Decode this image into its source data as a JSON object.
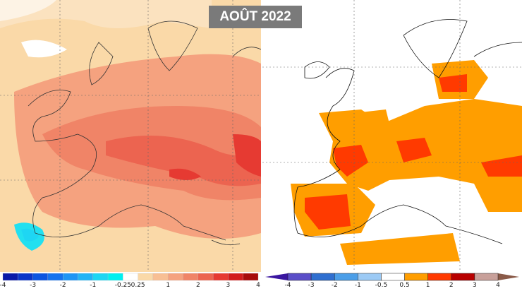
{
  "title": "AOÛT 2022",
  "left_legend": {
    "ticks": [
      "-4",
      "-3",
      "-2",
      "-1",
      "-0.25",
      "0.25",
      "1",
      "2",
      "3",
      "4"
    ],
    "colors": [
      "#0a1aa8",
      "#0a35c8",
      "#0d55e0",
      "#1673ee",
      "#1f95f4",
      "#22b4f5",
      "#1ed6f3",
      "#00f0f0",
      "#ffffff",
      "#fad9a8",
      "#f8bf94",
      "#f5a27f",
      "#f08467",
      "#ec6450",
      "#e63a32",
      "#d21c1c",
      "#a80c0c"
    ]
  },
  "right_legend": {
    "ticks": [
      "-4",
      "-3",
      "-2",
      "-1",
      "-0.5",
      "0.5",
      "1",
      "2",
      "3",
      "4"
    ],
    "colors": [
      "#3a16a0",
      "#5a4ec8",
      "#2f6fd0",
      "#4b9ee8",
      "#9ccaf5",
      "#ffffff",
      "#ff9e00",
      "#ff3a00",
      "#b80000",
      "#c8a09a",
      "#8a5a48"
    ]
  }
}
